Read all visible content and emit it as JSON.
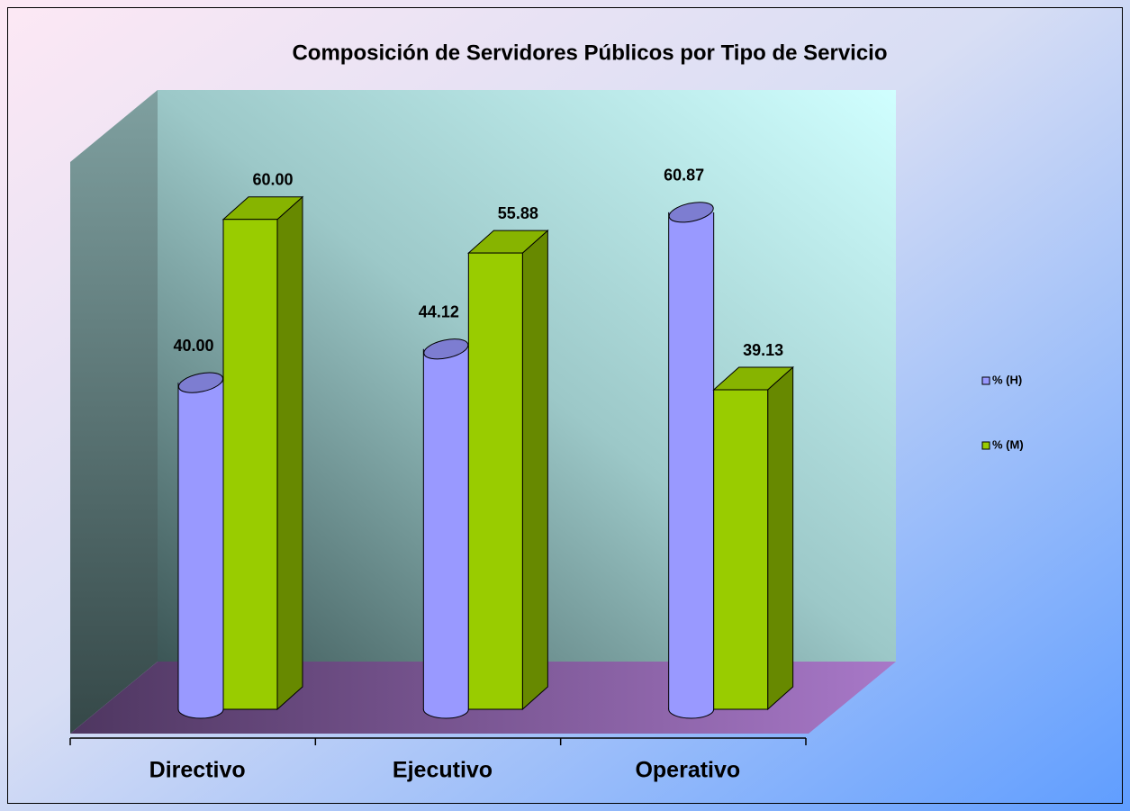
{
  "chart_data": {
    "type": "bar3d",
    "title": "Composición de Servidores Públicos por Tipo de Servicio",
    "categories": [
      "Directivo",
      "Ejecutivo",
      "Operativo"
    ],
    "series": [
      {
        "name": "% (H)",
        "color": "#9999ff",
        "values": [
          40,
          44.12,
          60.87
        ],
        "value_labels": [
          "40.00",
          "44.12",
          "60.87"
        ]
      },
      {
        "name": "% (M)",
        "color": "#99cc00",
        "values": [
          60,
          55.88,
          39.13
        ],
        "value_labels": [
          "60.00",
          "55.88",
          "39.13"
        ]
      }
    ],
    "ylim": [
      0,
      70
    ],
    "legend": "right"
  }
}
